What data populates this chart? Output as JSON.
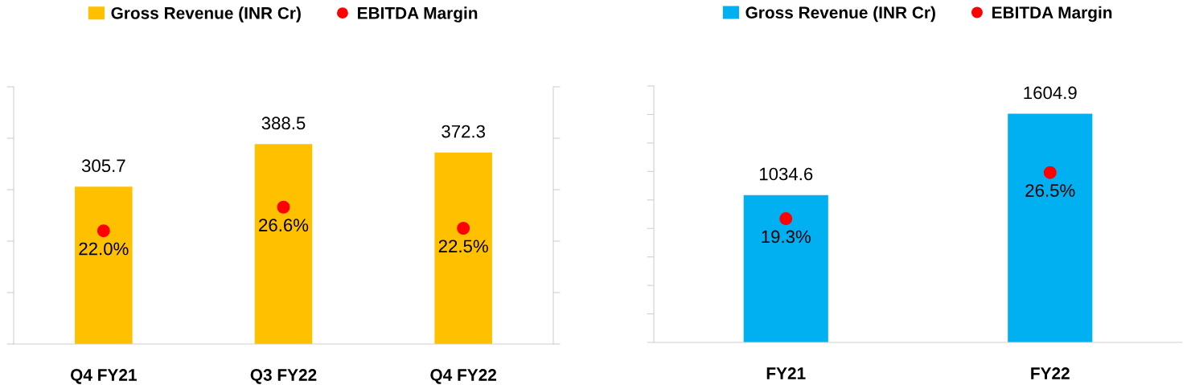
{
  "chart_data": [
    {
      "type": "bar",
      "categories": [
        "Q4 FY21",
        "Q3 FY22",
        "Q4 FY22"
      ],
      "ylim": [
        0,
        500
      ],
      "yticks": [
        {
          "value": 0,
          "label": null
        },
        {
          "value": 100,
          "label": null
        },
        {
          "value": 200,
          "label": null
        },
        {
          "value": 300,
          "label": null
        },
        {
          "value": 400,
          "label": null
        },
        {
          "value": 500,
          "label": null
        }
      ],
      "y2lim": [
        0,
        50
      ],
      "y2ticks": [
        {
          "value": 0,
          "label": null
        },
        {
          "value": 10,
          "label": null
        },
        {
          "value": 20,
          "label": null
        },
        {
          "value": 30,
          "label": null
        },
        {
          "value": 40,
          "label": null
        },
        {
          "value": 50,
          "label": null
        }
      ],
      "tick_labels": "x",
      "grid": false,
      "legend": "top",
      "data_labels": true,
      "series": [
        {
          "name": "Gross Revenue (INR Cr)",
          "color": "#ffc000",
          "values": [
            305.7,
            388.5,
            372.3
          ]
        },
        {
          "name": "EBITDA Margin",
          "type": "scatter",
          "axis": "y2",
          "marker": "circle",
          "color": "#ff0000",
          "values": [
            22.0,
            26.6,
            22.5
          ],
          "value_labels": [
            "22.0%",
            "26.6%",
            "22.5%"
          ]
        }
      ]
    },
    {
      "type": "bar",
      "categories": [
        "FY21",
        "FY22"
      ],
      "ylim": [
        0,
        1800
      ],
      "yticks": [
        {
          "value": 0,
          "label": null
        },
        {
          "value": 200,
          "label": null
        },
        {
          "value": 400,
          "label": null
        },
        {
          "value": 600,
          "label": null
        },
        {
          "value": 800,
          "label": null
        },
        {
          "value": 1000,
          "label": null
        },
        {
          "value": 1200,
          "label": null
        },
        {
          "value": 1400,
          "label": null
        },
        {
          "value": 1600,
          "label": null
        },
        {
          "value": 1800,
          "label": null
        }
      ],
      "y2lim": [
        0,
        40
      ],
      "tick_labels": "x",
      "grid": false,
      "legend": "top",
      "data_labels": true,
      "series": [
        {
          "name": "Gross Revenue (INR Cr)",
          "color": "#00b0f0",
          "values": [
            1034.6,
            1604.9
          ]
        },
        {
          "name": "EBITDA Margin",
          "type": "scatter",
          "axis": "y2",
          "marker": "circle",
          "color": "#ff0000",
          "values": [
            19.3,
            26.5
          ],
          "value_labels": [
            "19.3%",
            "26.5%"
          ]
        }
      ]
    }
  ]
}
